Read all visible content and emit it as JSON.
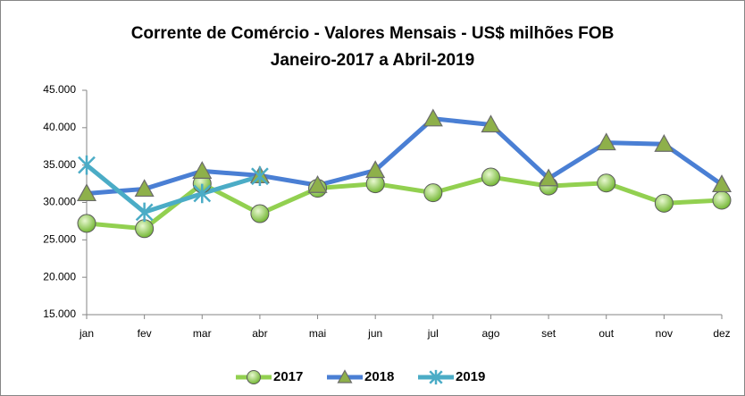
{
  "chart_data": {
    "type": "line",
    "title": "Corrente de Comércio - Valores Mensais -  US$ milhões FOB",
    "subtitle": "Janeiro-2017 a Abril-2019",
    "categories": [
      "jan",
      "fev",
      "mar",
      "abr",
      "mai",
      "jun",
      "jul",
      "ago",
      "set",
      "out",
      "nov",
      "dez"
    ],
    "series": [
      {
        "name": "2017",
        "color": "#92d050",
        "marker": "circle",
        "values": [
          27200,
          26500,
          32500,
          28500,
          31900,
          32500,
          31300,
          33400,
          32200,
          32600,
          29900,
          30300
        ]
      },
      {
        "name": "2018",
        "color": "#4a7fd4",
        "marker": "triangle",
        "values": [
          31200,
          31800,
          34200,
          33600,
          32300,
          34300,
          41200,
          40400,
          33200,
          38000,
          37800,
          32400
        ]
      },
      {
        "name": "2019",
        "color": "#4bacc6",
        "marker": "x",
        "values": [
          35000,
          28700,
          31200,
          33500,
          null,
          null,
          null,
          null,
          null,
          null,
          null,
          null
        ]
      }
    ],
    "ylim": [
      15000,
      45000
    ],
    "yticks": [
      {
        "value": 15000,
        "label": "15.000"
      },
      {
        "value": 20000,
        "label": "20.000"
      },
      {
        "value": 25000,
        "label": "25.000"
      },
      {
        "value": 30000,
        "label": "30.000"
      },
      {
        "value": 35000,
        "label": "35.000"
      },
      {
        "value": 40000,
        "label": "40.000"
      },
      {
        "value": 45000,
        "label": "45.000"
      }
    ],
    "grid": false,
    "legend": "bottom"
  }
}
